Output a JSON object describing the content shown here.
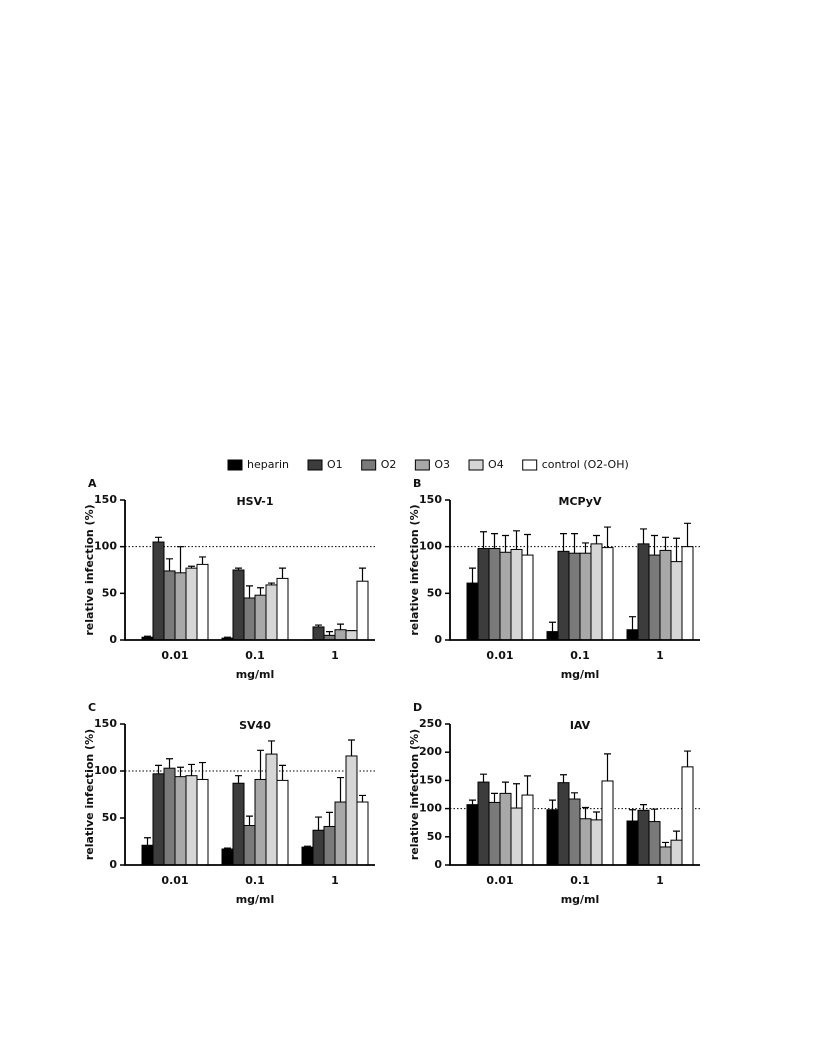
{
  "legend": [
    {
      "name": "heparin",
      "color": "#000000"
    },
    {
      "name": "O1",
      "color": "#3c3c3c"
    },
    {
      "name": "O2",
      "color": "#7a7a7a"
    },
    {
      "name": "O3",
      "color": "#a8a8a8"
    },
    {
      "name": "O4",
      "color": "#d6d6d6"
    },
    {
      "name": "control (O2-OH)",
      "color": "#ffffff"
    }
  ],
  "chart_data": [
    {
      "type": "bar",
      "panel": "A",
      "title": "HSV-1",
      "xlabel": "mg/ml",
      "ylabel": "relative infection (%)",
      "categories": [
        "0.01",
        "0.1",
        "1"
      ],
      "ylim": [
        0,
        150
      ],
      "yticks": [
        0,
        50,
        100,
        150
      ],
      "reference_line": 100,
      "series": [
        {
          "values": [
            3,
            2,
            0
          ],
          "errors": [
            1,
            1,
            0
          ]
        },
        {
          "values": [
            105,
            75,
            14
          ],
          "errors": [
            5,
            2,
            2
          ]
        },
        {
          "values": [
            74,
            45,
            5
          ],
          "errors": [
            13,
            13,
            4
          ]
        },
        {
          "values": [
            72,
            48,
            11
          ],
          "errors": [
            28,
            8,
            6
          ]
        },
        {
          "values": [
            77,
            59,
            10
          ],
          "errors": [
            2,
            2,
            0
          ]
        },
        {
          "values": [
            81,
            66,
            63
          ],
          "errors": [
            8,
            11,
            14
          ]
        }
      ]
    },
    {
      "type": "bar",
      "panel": "B",
      "title": "MCPyV",
      "xlabel": "mg/ml",
      "ylabel": "relative infection (%)",
      "categories": [
        "0.01",
        "0.1",
        "1"
      ],
      "ylim": [
        0,
        150
      ],
      "yticks": [
        0,
        50,
        100,
        150
      ],
      "reference_line": 100,
      "series": [
        {
          "values": [
            61,
            9,
            11
          ],
          "errors": [
            16,
            10,
            14
          ]
        },
        {
          "values": [
            98,
            95,
            103
          ],
          "errors": [
            18,
            19,
            16
          ]
        },
        {
          "values": [
            98,
            93,
            91
          ],
          "errors": [
            16,
            21,
            21
          ]
        },
        {
          "values": [
            94,
            93,
            96
          ],
          "errors": [
            18,
            11,
            14
          ]
        },
        {
          "values": [
            97,
            103,
            84
          ],
          "errors": [
            20,
            9,
            25
          ]
        },
        {
          "values": [
            91,
            99,
            100
          ],
          "errors": [
            22,
            22,
            25
          ]
        }
      ]
    },
    {
      "type": "bar",
      "panel": "C",
      "title": "SV40",
      "xlabel": "mg/ml",
      "ylabel": "relative infection (%)",
      "categories": [
        "0.01",
        "0.1",
        "1"
      ],
      "ylim": [
        0,
        150
      ],
      "yticks": [
        0,
        50,
        100,
        150
      ],
      "reference_line": 100,
      "series": [
        {
          "values": [
            21,
            17,
            19
          ],
          "errors": [
            8,
            1,
            1
          ]
        },
        {
          "values": [
            97,
            87,
            37
          ],
          "errors": [
            9,
            8,
            14
          ]
        },
        {
          "values": [
            103,
            42,
            41
          ],
          "errors": [
            10,
            10,
            15
          ]
        },
        {
          "values": [
            94,
            91,
            67
          ],
          "errors": [
            10,
            31,
            26
          ]
        },
        {
          "values": [
            95,
            118,
            116
          ],
          "errors": [
            12,
            14,
            17
          ]
        },
        {
          "values": [
            91,
            90,
            67
          ],
          "errors": [
            18,
            16,
            7
          ]
        }
      ]
    },
    {
      "type": "bar",
      "panel": "D",
      "title": "IAV",
      "xlabel": "mg/ml",
      "ylabel": "relative infection (%)",
      "categories": [
        "0.01",
        "0.1",
        "1"
      ],
      "ylim": [
        0,
        250
      ],
      "yticks": [
        0,
        50,
        100,
        150,
        200,
        250
      ],
      "reference_line": 100,
      "series": [
        {
          "values": [
            107,
            98,
            78
          ],
          "errors": [
            8,
            17,
            20
          ]
        },
        {
          "values": [
            147,
            146,
            97
          ],
          "errors": [
            14,
            14,
            10
          ]
        },
        {
          "values": [
            111,
            117,
            77
          ],
          "errors": [
            16,
            11,
            22
          ]
        },
        {
          "values": [
            127,
            82,
            32
          ],
          "errors": [
            20,
            20,
            8
          ]
        },
        {
          "values": [
            101,
            80,
            44
          ],
          "errors": [
            43,
            14,
            16
          ]
        },
        {
          "values": [
            124,
            149,
            174
          ],
          "errors": [
            34,
            48,
            28
          ]
        }
      ]
    }
  ]
}
